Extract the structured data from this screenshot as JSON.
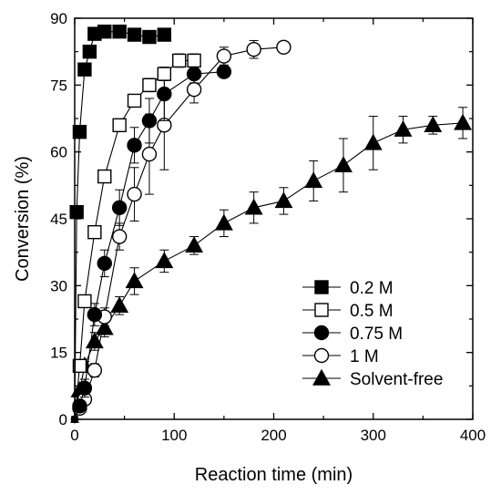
{
  "chart_data": {
    "type": "line",
    "title": "",
    "xlabel": "Reaction time (min)",
    "ylabel": "Conversion (%)",
    "xlim": [
      0,
      400
    ],
    "ylim": [
      0,
      90
    ],
    "xticks": [
      0,
      100,
      200,
      300,
      400
    ],
    "yticks": [
      0,
      15,
      30,
      45,
      60,
      75,
      90
    ],
    "grid": false,
    "legend_position": "bottom-right",
    "series": [
      {
        "name": "0.2 M",
        "marker": "square-filled",
        "x": [
          0,
          2,
          5,
          10,
          15,
          20,
          30,
          45,
          60,
          75,
          90
        ],
        "y": [
          0,
          46.5,
          64.5,
          78.5,
          82.5,
          86.5,
          87,
          87,
          86.3,
          85.8,
          86.3
        ],
        "err": [
          0,
          0,
          0,
          0,
          0,
          0,
          0,
          0,
          0,
          0,
          0
        ]
      },
      {
        "name": "0.5 M",
        "marker": "square-open",
        "x": [
          0,
          5,
          10,
          20,
          30,
          45,
          60,
          75,
          90,
          105,
          120
        ],
        "y": [
          0,
          12,
          26.5,
          42,
          54.5,
          66,
          71.5,
          75,
          77.5,
          80.5,
          80.5
        ],
        "err": [
          0,
          1,
          1,
          1,
          1,
          1,
          1,
          1.5,
          1.5,
          1.5,
          1.5
        ]
      },
      {
        "name": "0.75 M",
        "marker": "circle-filled",
        "x": [
          0,
          5,
          10,
          20,
          30,
          45,
          60,
          75,
          90,
          120,
          150
        ],
        "y": [
          0,
          3,
          7,
          23.5,
          35,
          47.5,
          61.5,
          67,
          73,
          77.5,
          78
        ],
        "err": [
          0,
          1,
          2,
          2.5,
          3,
          4,
          4,
          5,
          6,
          2,
          1
        ]
      },
      {
        "name": "1 M",
        "marker": "circle-open",
        "x": [
          0,
          5,
          10,
          20,
          30,
          45,
          60,
          75,
          90,
          120,
          150,
          180,
          210
        ],
        "y": [
          0,
          2.5,
          4.5,
          11,
          23,
          41,
          50.5,
          59.5,
          66,
          74,
          81.5,
          83,
          83.5
        ],
        "err": [
          0,
          1,
          1,
          1.5,
          2,
          3,
          6,
          9,
          10,
          3,
          2,
          2,
          1
        ]
      },
      {
        "name": "Solvent-free",
        "marker": "triangle-filled",
        "x": [
          0,
          5,
          10,
          20,
          30,
          45,
          60,
          90,
          120,
          150,
          180,
          210,
          240,
          270,
          300,
          330,
          360,
          390
        ],
        "y": [
          0,
          6.5,
          12,
          17.5,
          20.5,
          25.5,
          31,
          35.5,
          39,
          44,
          47.5,
          49,
          53.5,
          57,
          62,
          65,
          66,
          66.5
        ],
        "err": [
          0,
          1,
          1,
          2,
          2,
          2,
          3,
          2.5,
          2,
          3,
          3.5,
          3,
          4.5,
          6,
          6,
          3,
          2,
          3.5
        ]
      }
    ]
  }
}
